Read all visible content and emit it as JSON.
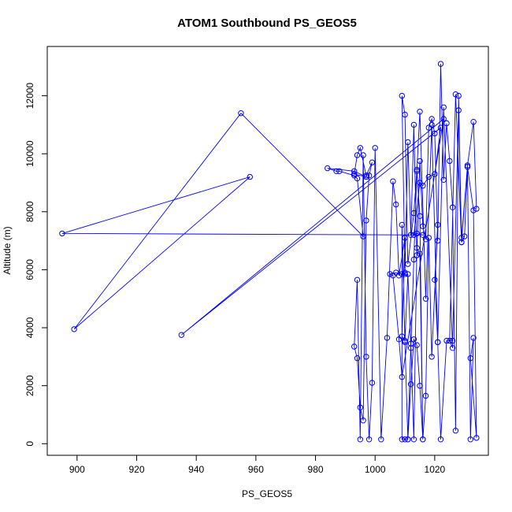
{
  "chart_data": {
    "type": "line",
    "title": "ATOM1 Southbound PS_GEOS5",
    "xlabel": "PS_GEOS5",
    "ylabel": "Altitude (m)",
    "xlim": [
      890,
      1038
    ],
    "ylim": [
      -400,
      13700
    ],
    "xticks": [
      900,
      920,
      940,
      960,
      980,
      1000,
      1020
    ],
    "yticks": [
      0,
      2000,
      4000,
      6000,
      8000,
      10000,
      12000
    ],
    "grid": false,
    "color": "#0000ff",
    "marker": "open-circle",
    "series": [
      {
        "x": [
          1034,
          1033,
          1031,
          1029,
          1027,
          1025,
          1026,
          1023,
          1021,
          1019,
          1017,
          1015,
          1014,
          1013,
          1011,
          1010,
          1009,
          1010,
          1011,
          1012,
          1013,
          1014,
          1015,
          1016,
          1017,
          1018,
          1019,
          1020,
          1021,
          1022,
          1023,
          1024,
          1025,
          1026,
          1027,
          1028,
          1029,
          1030,
          1031,
          1032,
          1033,
          1032,
          1034,
          1033,
          1031,
          1029,
          1028,
          1026,
          1024,
          1022,
          1021,
          1020,
          1021,
          1019,
          1018,
          1017,
          1016,
          1015,
          1014,
          1013,
          1012,
          1011,
          1010,
          1009,
          1009,
          1010,
          1011,
          1012,
          1013,
          1014,
          1015,
          1016,
          1015,
          1014,
          1013,
          1012,
          1011,
          1010,
          1009,
          1010,
          1008,
          1007,
          1006,
          1004,
          1002,
          1000,
          999,
          998,
          997,
          996,
          995,
          994,
          993,
          994,
          995,
          996,
          997,
          998,
          999,
          997,
          995,
          994,
          993,
          997,
          993,
          984,
          987,
          988,
          993,
          994,
          996,
          955,
          899,
          958,
          895,
          1016,
          1014,
          1013,
          1015,
          1016,
          1018,
          1020,
          1022,
          935,
          1023,
          1009,
          1008,
          1006,
          1005,
          1007,
          1009,
          1010
        ],
        "y": [
          8100,
          11100,
          9600,
          6950,
          12050,
          3550,
          3300,
          11600,
          3500,
          11000,
          5000,
          11450,
          9400,
          7950,
          6200,
          11350,
          12000,
          5900,
          10400,
          7200,
          11000,
          6500,
          9750,
          7500,
          7050,
          10900,
          11200,
          10700,
          7000,
          13100,
          9100,
          11050,
          9750,
          8150,
          450,
          12000,
          6950,
          7150,
          9550,
          150,
          3650,
          2950,
          200,
          8050,
          9550,
          7100,
          11500,
          3550,
          3550,
          150,
          3500,
          5650,
          7550,
          3000,
          7100,
          1650,
          150,
          2000,
          3400,
          3600,
          2050,
          150,
          150,
          150,
          7550,
          3500,
          150,
          3450,
          150,
          6750,
          6550,
          150,
          7850,
          9450,
          6350,
          3300,
          5850,
          3550,
          3700,
          7100,
          5800,
          8250,
          9050,
          3650,
          150,
          10200,
          2100,
          150,
          3000,
          9950,
          150,
          5650,
          3350,
          2950,
          1250,
          800,
          7700,
          9250,
          9700,
          9250,
          10200,
          9950,
          9300,
          9200,
          9400,
          9500,
          9400,
          9400,
          9250,
          9150,
          7150,
          11400,
          3950,
          9200,
          7250,
          7200,
          7250,
          7200,
          9000,
          8900,
          9200,
          9300,
          10900,
          3750,
          11200,
          2300,
          3600,
          5800,
          5850,
          5900,
          5850,
          5850
        ]
      }
    ]
  }
}
